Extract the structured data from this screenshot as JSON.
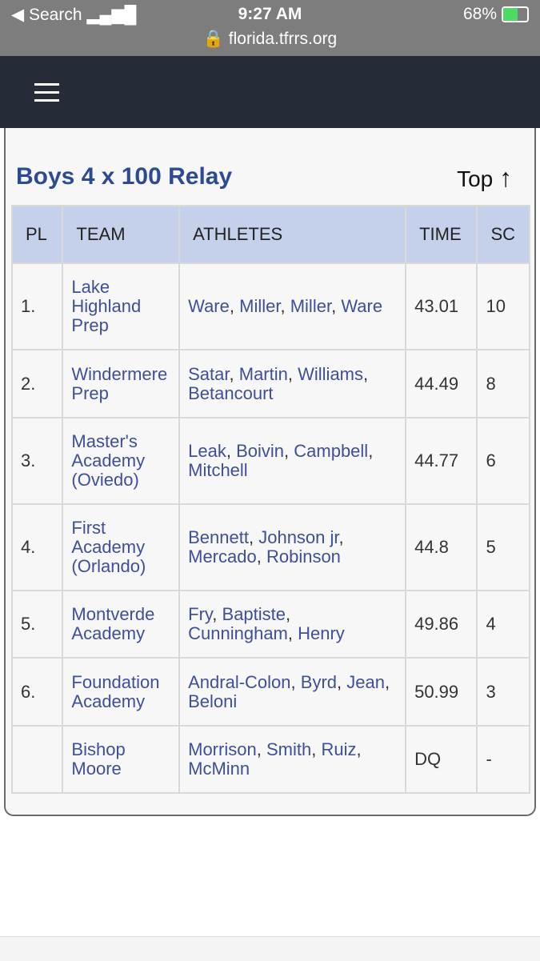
{
  "status_bar": {
    "back": "Search",
    "time": "9:27 AM",
    "battery": "68%"
  },
  "url": "florida.tfrrs.org",
  "event": {
    "title": "Boys 4 x 100 Relay",
    "top_link": "Top"
  },
  "table": {
    "headers": [
      "PL",
      "TEAM",
      "ATHLETES",
      "TIME",
      "SC"
    ],
    "separator": ",",
    "rows": [
      {
        "place": "1.",
        "team": "Lake Highland Prep",
        "athletes": [
          "Ware",
          "Miller",
          "Miller",
          "Ware"
        ],
        "time": 43.01,
        "score": 10
      },
      {
        "place": "2.",
        "team": "Windermere Prep",
        "athletes": [
          "Satar",
          "Martin",
          "Williams",
          "Betancourt"
        ],
        "time": 44.49,
        "score": 8
      },
      {
        "place": "3.",
        "team": "Master's Academy (Oviedo)",
        "athletes": [
          "Leak",
          "Boivin",
          "Campbell",
          "Mitchell"
        ],
        "time": 44.77,
        "score": 6
      },
      {
        "place": "4.",
        "team": "First Academy (Orlando)",
        "athletes": [
          "Bennett",
          "Johnson jr",
          "Mercado",
          "Robinson"
        ],
        "time": 44.8,
        "score": 5
      },
      {
        "place": "5.",
        "team": "Montverde Academy",
        "athletes": [
          "Fry",
          "Baptiste",
          "Cunningham",
          "Henry"
        ],
        "time": 49.86,
        "score": 4
      },
      {
        "place": "6.",
        "team": "Foundation Academy",
        "athletes": [
          "Andral-Colon",
          "Byrd",
          "Jean",
          "Beloni"
        ],
        "time": 50.99,
        "score": 3
      },
      {
        "team": "Bishop Moore",
        "athletes": [
          "Morrison",
          "Smith",
          "Ruiz",
          "McMinn"
        ],
        "time": "DQ",
        "score": "-"
      }
    ]
  }
}
